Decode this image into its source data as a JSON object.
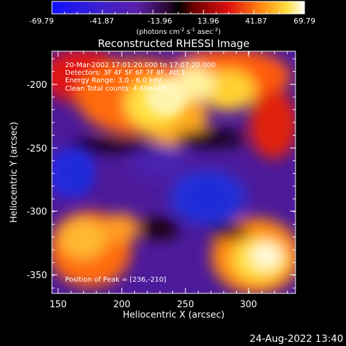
{
  "colorbar": {
    "tick_labels": [
      "-69.79",
      "-41.87",
      "-13.96",
      "13.96",
      "41.87",
      "69.79"
    ],
    "unit_label": "(photons cm",
    "unit_exp1": "-2",
    "unit_mid": " s",
    "unit_exp2": "-1",
    "unit_mid2": " asec",
    "unit_exp3": "-2",
    "unit_end": ")"
  },
  "plot": {
    "title": "Reconstructed RHESSI Image",
    "xlabel": "Heliocentric X (arcsec)",
    "ylabel": "Heliocentric Y (arcsec)",
    "x_ticks": [
      "150",
      "200",
      "250",
      "300"
    ],
    "y_ticks": [
      "-200",
      "-250",
      "-300",
      "-350"
    ],
    "info_lines": [
      "20-Mar-2002 17:01:20.000 to 17:07:20.000",
      "Detectors: 3F 4F 5F 6F 7F 8F, Att 1",
      "Energy Range: 3.0 - 6.0 keV",
      "Clean     Total counts: 4.60e+05"
    ],
    "peak_label": "Position of Peak = [236,-210]"
  },
  "footer": {
    "timestamp": "24-Aug-2022 13:40"
  },
  "colors": {
    "deep_blue": "#1f2bd8",
    "purple": "#5a1fa8",
    "black": "#000000",
    "red": "#d01010",
    "orange": "#ff8a10",
    "yellow": "#ffe040",
    "white": "#fffbe6"
  },
  "chart_data": {
    "type": "heatmap",
    "title": "Reconstructed RHESSI Image",
    "xlabel": "Heliocentric X (arcsec)",
    "ylabel": "Heliocentric Y (arcsec)",
    "xlim": [
      145,
      335
    ],
    "ylim": [
      -365,
      -182
    ],
    "colorbar_range": [
      -69.79,
      69.79
    ],
    "peak": [
      236,
      -210
    ]
  }
}
